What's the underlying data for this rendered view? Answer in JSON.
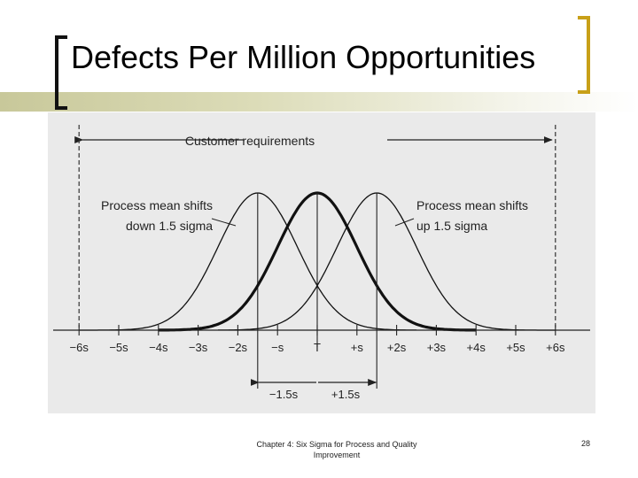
{
  "slide": {
    "title": "Defects Per Million Opportunities",
    "footer_line1": "Chapter 4: Six Sigma for Process and Quality",
    "footer_line2": "Improvement",
    "page_number": "28"
  },
  "diagram": {
    "customer_requirements": "Customer requirements",
    "shift_down_line1": "Process mean shifts",
    "shift_down_line2": "down 1.5 sigma",
    "shift_up_line1": "Process mean shifts",
    "shift_up_line2": "up 1.5 sigma",
    "axis_ticks": [
      "−6s",
      "−5s",
      "−4s",
      "−3s",
      "−2s",
      "−s",
      "T",
      "+s",
      "+2s",
      "+3s",
      "+4s",
      "+5s",
      "+6s"
    ],
    "tick_values": [
      -6,
      -5,
      -4,
      -3,
      -2,
      -1,
      0,
      1,
      2,
      3,
      4,
      5,
      6
    ],
    "shift_left_label": "−1.5s",
    "shift_right_label": "+1.5s",
    "curves": [
      {
        "mean": -1.5,
        "range": [
          -6,
          2.5
        ],
        "emphasis": false
      },
      {
        "mean": 0,
        "range": [
          -4,
          4
        ],
        "emphasis": true
      },
      {
        "mean": 1.5,
        "range": [
          -2.5,
          6
        ],
        "emphasis": false
      }
    ]
  }
}
